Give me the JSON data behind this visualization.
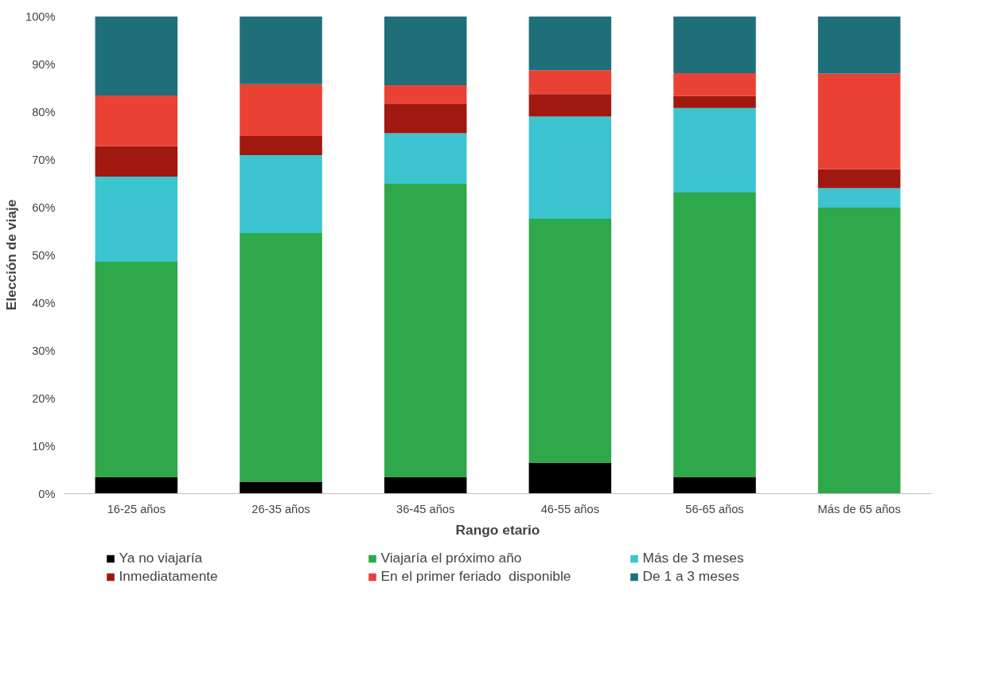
{
  "chart_data": {
    "type": "bar",
    "stacked": true,
    "xlabel": "Rango etario",
    "ylabel": "Elección de viaje",
    "categories": [
      "16-25 años",
      "26-35 años",
      "36-45 años",
      "46-55 años",
      "56-65 años",
      "Más de 65 años"
    ],
    "series": [
      {
        "name": "Ya no viajaría",
        "color": "#000000",
        "values": [
          3.4,
          2.5,
          3.4,
          6.5,
          3.4,
          0
        ]
      },
      {
        "name": "Viajaría el próximo año",
        "color": "#2ea84a",
        "values": [
          45.2,
          52.1,
          61.5,
          51.1,
          59.7,
          59.9
        ]
      },
      {
        "name": "Más de 3 meses",
        "color": "#3cc4d0",
        "values": [
          17.8,
          16.3,
          10.6,
          21.4,
          17.7,
          4.1
        ]
      },
      {
        "name": "Inmediatamente",
        "color": "#a01810",
        "values": [
          6.4,
          4.0,
          6.1,
          4.7,
          2.5,
          4.0
        ]
      },
      {
        "name": "En el primer feriado  disponible",
        "color": "#e94235",
        "values": [
          10.6,
          10.9,
          4.0,
          5.0,
          4.8,
          20.0
        ]
      },
      {
        "name": "De 1 a 3 meses",
        "color": "#1e6f7a",
        "values": [
          16.6,
          14.2,
          14.4,
          11.3,
          11.9,
          12.0
        ]
      }
    ],
    "ylim": [
      0,
      100
    ],
    "yticks": [
      {
        "value": 0,
        "label": "0%"
      },
      {
        "value": 10,
        "label": "10%"
      },
      {
        "value": 20,
        "label": "20%"
      },
      {
        "value": 30,
        "label": "30%"
      },
      {
        "value": 40,
        "label": "40%"
      },
      {
        "value": 50,
        "label": "50%"
      },
      {
        "value": 60,
        "label": "60%"
      },
      {
        "value": 70,
        "label": "70%"
      },
      {
        "value": 80,
        "label": "80%"
      },
      {
        "value": 90,
        "label": "90%"
      },
      {
        "value": 100,
        "label": "100%"
      }
    ],
    "grid": false,
    "legend": "bottom"
  }
}
